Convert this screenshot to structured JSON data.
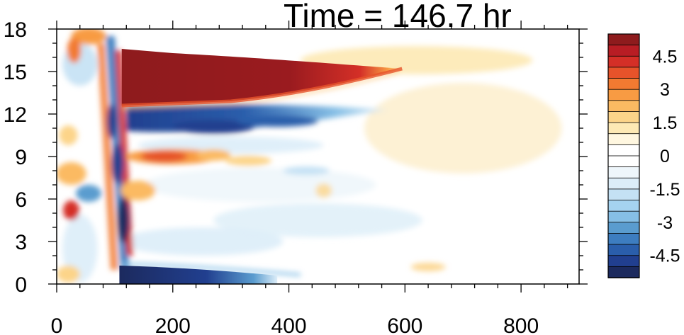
{
  "chart_data": {
    "type": "heatmap",
    "title": "Time = 146.7 hr",
    "xlim": [
      0,
      900
    ],
    "ylim": [
      0,
      18
    ],
    "xticks": [
      0,
      200,
      400,
      600,
      800
    ],
    "yticks": [
      0,
      3,
      6,
      9,
      12,
      15,
      18
    ],
    "xtick_labels": [
      "0",
      "200",
      "400",
      "600",
      "800"
    ],
    "ytick_labels": [
      "0",
      "3",
      "6",
      "9",
      "12",
      "15",
      "18"
    ],
    "grid": false,
    "colorbar": {
      "placement": "right",
      "levels": [
        -5.5,
        -5,
        -4.5,
        -4,
        -3.5,
        -3,
        -2.5,
        -2,
        -1.5,
        -1,
        -0.5,
        0,
        0.5,
        1,
        1.5,
        2,
        2.5,
        3,
        3.5,
        4,
        4.5,
        5,
        5.5
      ],
      "labels": [
        "4.5",
        "3",
        "1.5",
        "0",
        "-1.5",
        "-3",
        "-4.5"
      ],
      "label_values": [
        4.5,
        3,
        1.5,
        0,
        -1.5,
        -3,
        -4.5
      ],
      "colors": [
        "#1c2a5e",
        "#213f8f",
        "#2a5eab",
        "#3d7dc0",
        "#5a9ccf",
        "#86bfe6",
        "#a5d3f0",
        "#c4e1f4",
        "#dcedf8",
        "#eef6fb",
        "#ffffff",
        "#ffffff",
        "#fff7e0",
        "#fde9b4",
        "#fcd489",
        "#fbba62",
        "#f89b43",
        "#f27a31",
        "#e6532a",
        "#d42f27",
        "#b81d24",
        "#8e1b1d"
      ]
    },
    "features": [
      {
        "desc": "strong positive band",
        "x": [
          110,
          590
        ],
        "y": [
          12.5,
          16.5
        ],
        "value": 5.5
      },
      {
        "desc": "negative band",
        "x": [
          120,
          560
        ],
        "y": [
          10.5,
          12.5
        ],
        "value": -3.5
      },
      {
        "desc": "positive band",
        "x": [
          130,
          320
        ],
        "y": [
          8.5,
          9.5
        ],
        "value": 2.5
      },
      {
        "desc": "strong negative surface band",
        "x": [
          110,
          380
        ],
        "y": [
          0,
          1.2
        ],
        "value": -5
      }
    ]
  }
}
